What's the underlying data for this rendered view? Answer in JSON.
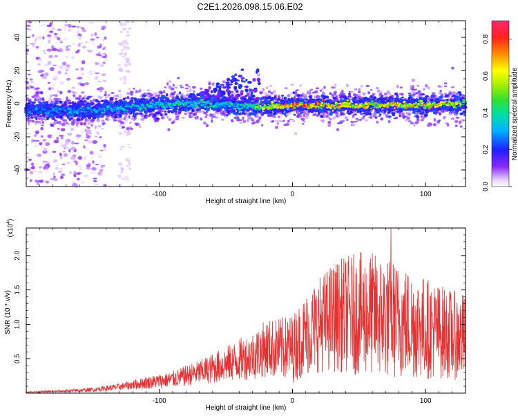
{
  "title": "C2E1.2026.098.15.06.E02",
  "colors": {
    "signal": "#e83030",
    "frame": "#000000"
  },
  "chart_data": [
    {
      "type": "heatmap",
      "title": "C2E1.2026.098.15.06.E02",
      "xlabel": "Height of straight line (km)",
      "ylabel": "Frequency (Hz)",
      "xlim": [
        -200,
        130
      ],
      "ylim": [
        -50,
        50
      ],
      "xticks": [
        -100,
        0,
        100
      ],
      "xtick_labels": [
        "-100",
        "0",
        "100"
      ],
      "yticks": [
        -40,
        -20,
        0,
        20,
        40
      ],
      "ytick_labels": [
        "-40",
        "-20",
        "0",
        "20",
        "40"
      ],
      "colorbar": {
        "label": "Normalized spectral amplitude",
        "range": [
          0.0,
          0.9
        ],
        "ticks": [
          0.0,
          0.2,
          0.4,
          0.6,
          0.8
        ],
        "tick_labels": [
          "0.0",
          "0.2",
          "0.4",
          "0.6",
          "0.8"
        ]
      },
      "ridge": {
        "description_points_x": [
          -190,
          -150,
          -120,
          -100,
          -80,
          -60,
          -40,
          -20,
          0,
          20,
          40,
          60,
          80,
          100,
          120,
          130
        ],
        "center_freq": [
          -4,
          -4,
          -2,
          -1,
          0,
          0,
          -1,
          -2,
          -1,
          -1,
          -1,
          -1,
          -1,
          -1,
          0,
          0
        ],
        "peak_amplitude": [
          0.3,
          0.35,
          0.4,
          0.45,
          0.45,
          0.45,
          0.4,
          0.7,
          0.85,
          0.8,
          0.8,
          0.75,
          0.75,
          0.75,
          0.7,
          0.6
        ]
      }
    },
    {
      "type": "line",
      "xlabel": "Height of straight line (km)",
      "ylabel": "SNR (10 * v/v)",
      "scale_label": "(x10",
      "scale_exp": "4",
      "scale_close": ")",
      "xlim": [
        -200,
        130
      ],
      "ylim": [
        0,
        24000
      ],
      "xticks": [
        -100,
        0,
        100
      ],
      "xtick_labels": [
        "-100",
        "0",
        "100"
      ],
      "yticks": [
        5000,
        10000,
        15000,
        20000
      ],
      "ytick_labels": [
        "0.5",
        "1.0",
        "1.5",
        "2.0"
      ],
      "envelope_x": [
        -200,
        -170,
        -150,
        -130,
        -110,
        -90,
        -70,
        -50,
        -30,
        -20,
        -10,
        0,
        10,
        20,
        30,
        40,
        50,
        60,
        70,
        80,
        90,
        100,
        110,
        120,
        130
      ],
      "envelope_mean": [
        150,
        300,
        500,
        900,
        1500,
        2000,
        3000,
        4200,
        5500,
        6500,
        6500,
        6500,
        8500,
        10000,
        11000,
        11500,
        11500,
        11500,
        11000,
        10500,
        10000,
        9500,
        9000,
        8500,
        8000
      ],
      "envelope_spread": [
        100,
        200,
        300,
        500,
        900,
        1200,
        1800,
        2600,
        3500,
        4200,
        4500,
        5000,
        6000,
        7000,
        8000,
        8500,
        9000,
        9000,
        9000,
        8500,
        8000,
        7500,
        7000,
        6500,
        6500
      ],
      "peak_value": 24000,
      "peak_x": 74
    }
  ]
}
